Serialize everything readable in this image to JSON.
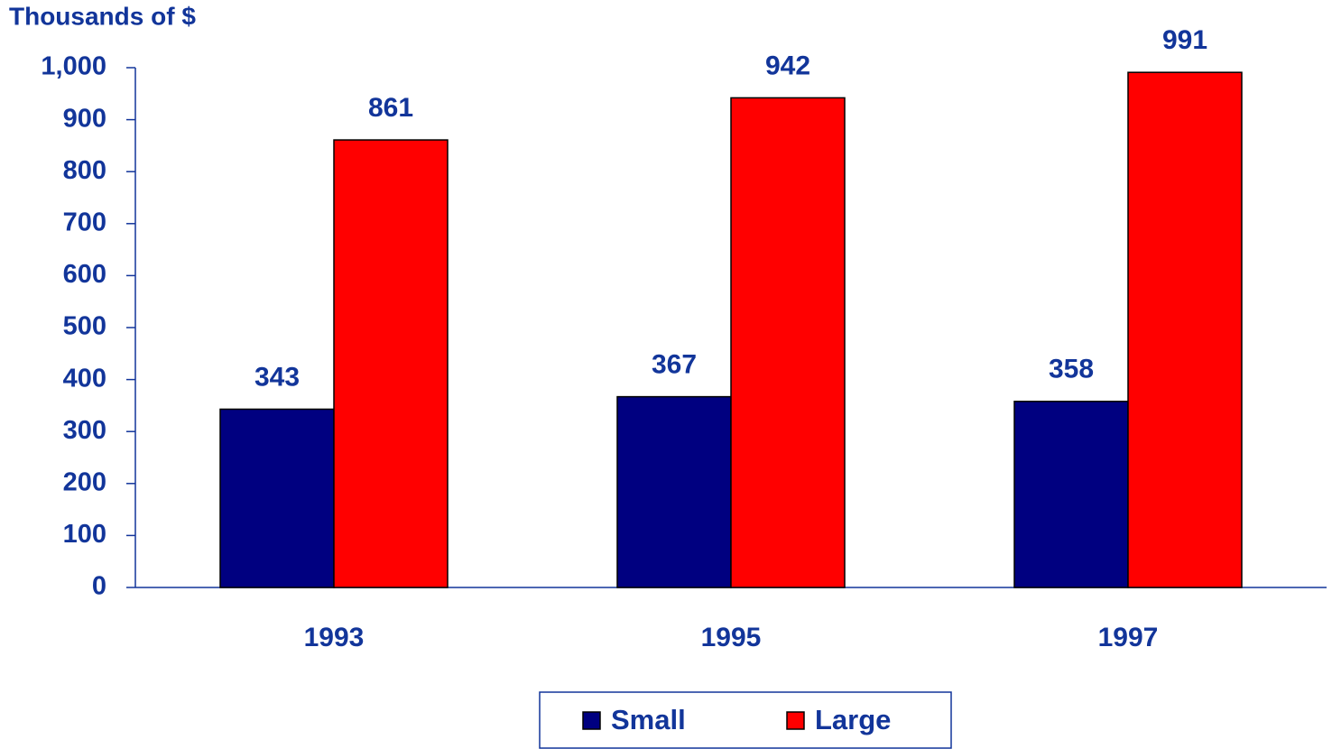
{
  "chart_data": {
    "type": "bar",
    "y_label": "Thousands of $",
    "categories": [
      "1993",
      "1995",
      "1997"
    ],
    "series": [
      {
        "name": "Small",
        "color": "#000080",
        "values": [
          343,
          367,
          358
        ]
      },
      {
        "name": "Large",
        "color": "#ff0000",
        "values": [
          861,
          942,
          991
        ]
      }
    ],
    "ylim": [
      0,
      1000
    ],
    "yticks": [
      0,
      100,
      200,
      300,
      400,
      500,
      600,
      700,
      800,
      900,
      {
        "value": 1000,
        "label": "1,000"
      }
    ],
    "legend": "bottom",
    "grid": false
  }
}
